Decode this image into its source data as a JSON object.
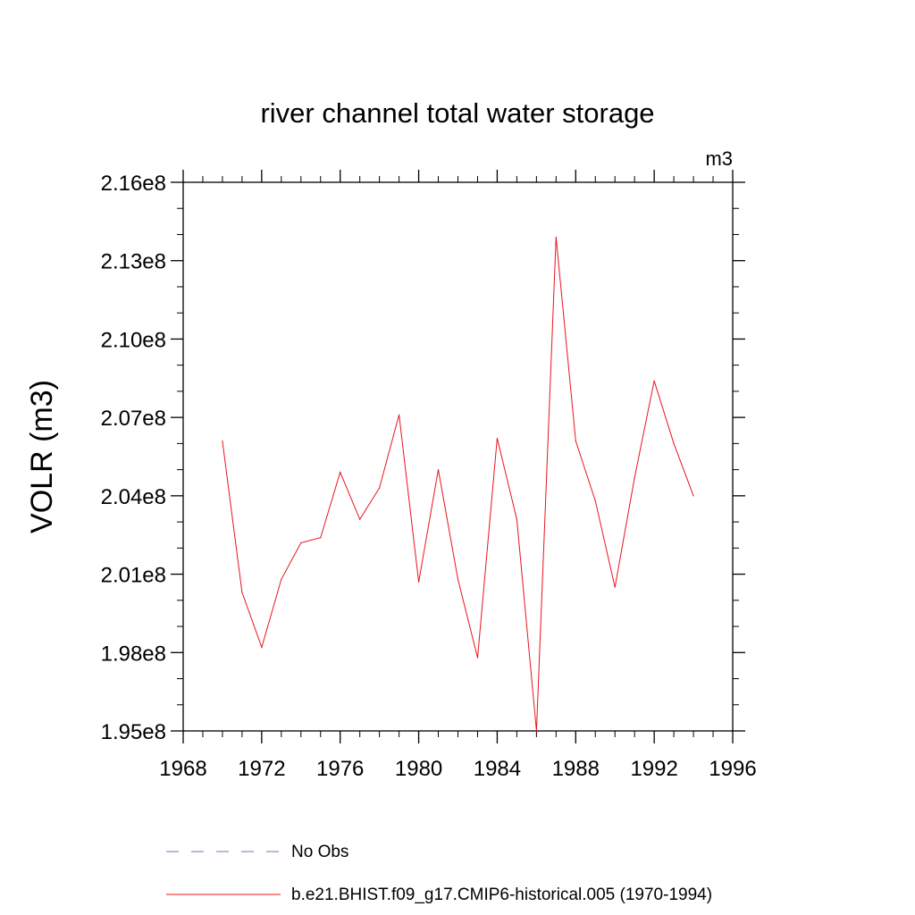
{
  "chart_data": {
    "type": "line",
    "title": "river channel total water storage",
    "units_label": "m3",
    "ylabel": "VOLR  (m3)",
    "xlabel": "",
    "xlim": [
      1968,
      1996
    ],
    "ylim": [
      195000000.0,
      216000000.0
    ],
    "x_ticks": [
      1968,
      1972,
      1976,
      1980,
      1984,
      1988,
      1992,
      1996
    ],
    "x_tick_labels": [
      "1968",
      "1972",
      "1976",
      "1980",
      "1984",
      "1988",
      "1992",
      "1996"
    ],
    "y_ticks": [
      195000000.0,
      198000000.0,
      201000000.0,
      204000000.0,
      207000000.0,
      210000000.0,
      213000000.0,
      216000000.0
    ],
    "y_tick_labels": [
      "1.95e8",
      "1.98e8",
      "2.01e8",
      "2.04e8",
      "2.07e8",
      "2.10e8",
      "2.13e8",
      "2.16e8"
    ],
    "grid": false,
    "legend_position": "bottom",
    "series": [
      {
        "name": "b.e21.BHIST.f09_g17.CMIP6-historical.005 (1970-1994)",
        "color": "#e8141d",
        "style": "solid",
        "x": [
          1970,
          1971,
          1972,
          1973,
          1974,
          1975,
          1976,
          1977,
          1978,
          1979,
          1980,
          1981,
          1982,
          1983,
          1984,
          1985,
          1986,
          1987,
          1988,
          1989,
          1990,
          1991,
          1992,
          1993,
          1994
        ],
        "values": [
          206100000.0,
          200300000.0,
          198200000.0,
          200800000.0,
          202200000.0,
          202400000.0,
          204900000.0,
          203100000.0,
          204300000.0,
          207100000.0,
          200700000.0,
          205000000.0,
          200800000.0,
          197800000.0,
          206200000.0,
          203100000.0,
          195000000.0,
          213900000.0,
          206100000.0,
          203800000.0,
          200500000.0,
          204700000.0,
          208400000.0,
          206000000.0,
          204000000.0
        ]
      }
    ],
    "legend": [
      {
        "name": "No Obs",
        "color": "#7b6fb5",
        "style": "dashed"
      },
      {
        "name": "b.e21.BHIST.f09_g17.CMIP6-historical.005 (1970-1994)",
        "color": "#e8141d",
        "style": "solid"
      }
    ]
  }
}
